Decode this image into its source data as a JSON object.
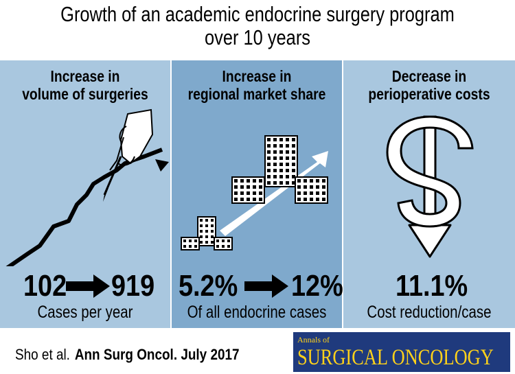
{
  "title": {
    "line1": "Growth of an academic endocrine surgery program",
    "line2": "over 10 years"
  },
  "panels": [
    {
      "heading_line1": "Increase in",
      "heading_line2": "volume of surgeries",
      "from_value": "102",
      "to_value": "919",
      "caption": "Cases per year",
      "illustration": "hand-with-scalpel-drawing-rising-line-icon"
    },
    {
      "heading_line1": "Increase in",
      "heading_line2": "regional market share",
      "from_value": "5.2%",
      "to_value": "12%",
      "caption": "Of all endocrine cases",
      "illustration": "hospital-buildings-growth-arrow-icon"
    },
    {
      "heading_line1": "Decrease in",
      "heading_line2": "perioperative costs",
      "value": "11.1%",
      "caption": "Cost reduction/case",
      "illustration": "dollar-down-arrow-icon"
    }
  ],
  "footer": {
    "citation_authors": "Sho et al.",
    "citation_journal": "Ann Surg Oncol. July 2017",
    "logo_small": "Annals of",
    "logo_large": "SURGICAL ONCOLOGY"
  },
  "colors": {
    "panel_light": "#a9c7df",
    "panel_dark": "#7fa9cc",
    "logo_bg": "#1f3a7d",
    "logo_text": "#ffd21a"
  }
}
